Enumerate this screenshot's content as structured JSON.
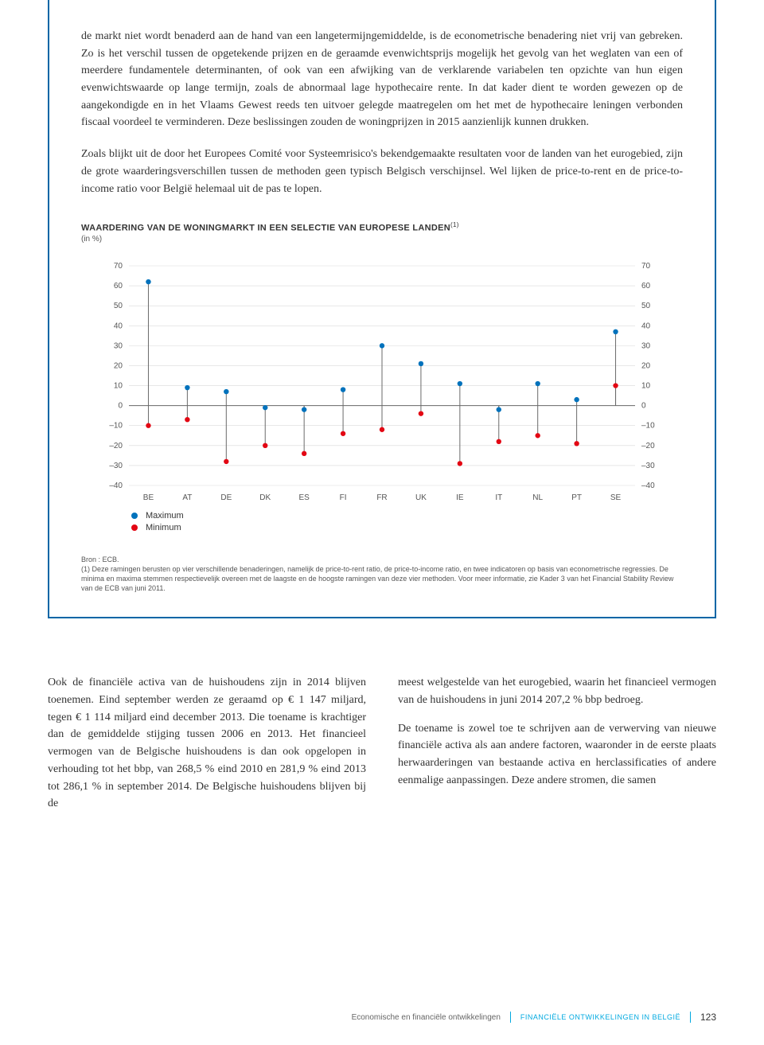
{
  "paragraphs": {
    "p1": "de markt niet wordt benaderd aan de hand van een langetermijngemiddelde, is de econometrische benadering niet vrij van gebreken. Zo is het verschil tussen de opgetekende prijzen en de geraamde evenwichtsprijs mogelijk het gevolg van het weglaten van een of meerdere fundamentele determinanten, of ook van een afwijking van de verklarende variabelen ten opzichte van hun eigen evenwichtswaarde op lange termijn, zoals de abnormaal lage hypothecaire rente. In dat kader dient te worden gewezen op de aangekondigde en in het Vlaams Gewest reeds ten uitvoer gelegde maatregelen om het met de hypothecaire leningen verbonden fiscaal voordeel te verminderen. Deze beslissingen zouden de woningprijzen in 2015 aanzienlijk kunnen drukken.",
    "p2": "Zoals blijkt uit de door het Europees Comité voor Systeemrisico's bekendgemaakte resultaten voor de landen van het eurogebied, zijn de grote waarderingsverschillen tussen de methoden geen typisch Belgisch verschijnsel. Wel lijken de price-to-rent en de price-to-income ratio voor België helemaal uit de pas te lopen."
  },
  "chart": {
    "title": "WAARDERING VAN DE WONINGMARKT IN EEN SELECTIE VAN EUROPESE LANDEN",
    "title_sup": "(1)",
    "subtitle": "(in %)",
    "y_ticks": [
      70,
      60,
      50,
      40,
      30,
      20,
      10,
      0,
      -10,
      -20,
      -30,
      -40
    ],
    "y_tick_labels": [
      "70",
      "60",
      "50",
      "40",
      "30",
      "20",
      "10",
      "0",
      "–10",
      "–20",
      "–30",
      "–40"
    ],
    "ylim": [
      -40,
      70
    ],
    "categories": [
      "BE",
      "AT",
      "DE",
      "DK",
      "ES",
      "FI",
      "FR",
      "UK",
      "IE",
      "IT",
      "NL",
      "PT",
      "SE"
    ],
    "max_values": [
      62,
      9,
      7,
      -1,
      -2,
      8,
      30,
      21,
      11,
      -2,
      11,
      3,
      37
    ],
    "min_values": [
      -10,
      -7,
      -28,
      -20,
      -24,
      -14,
      -12,
      -4,
      -29,
      -18,
      -15,
      -19,
      10
    ],
    "max_color": "#0072bc",
    "min_color": "#e30613",
    "line_color": "#6a6a6a",
    "grid_color": "#d9d9d9",
    "axis_color": "#666666",
    "background_color": "#ffffff",
    "tick_font_size": 10,
    "marker_radius": 3.2,
    "stem_width": 1
  },
  "legend": {
    "max": "Maximum",
    "min": "Minimum"
  },
  "source": {
    "line1": "Bron : ECB.",
    "line2": "(1) Deze ramingen berusten op vier verschillende benaderingen, namelijk de price-to-rent ratio, de price-to-income ratio, en twee indicatoren op basis van econometrische regressies. De minima en maxima stemmen respectievelijk overeen met de laagste en de hoogste ramingen van deze vier methoden. Voor meer informatie, zie Kader 3 van het Financial Stability Review van de ECB van juni 2011."
  },
  "columns": {
    "left": "Ook de financiële activa van de huishoudens zijn in 2014 blijven toenemen. Eind september werden ze geraamd op € 1 147 miljard, tegen € 1 114 miljard eind december 2013. Die toename is krachtiger dan de gemiddelde stijging tussen 2006 en 2013. Het financieel vermogen van de Belgische huishoudens is dan ook opgelopen in verhouding tot het bbp, van 268,5 % eind 2010 en 281,9 % eind 2013 tot 286,1 % in september 2014. De Belgische huishoudens blijven bij de",
    "right1": "meest welgestelde van het eurogebied, waarin het financieel vermogen van de huishoudens in juni 2014 207,2 % bbp bedroeg.",
    "right2": "De toename is zowel toe te schrijven aan de verwerving van nieuwe financiële activa als aan andere factoren, waaronder in de eerste plaats herwaarderingen van bestaande activa en herclassificaties of andere eenmalige aanpassingen. Deze andere stromen, die samen"
  },
  "footer": {
    "section_left": "Economische en financiële ontwikkelingen",
    "section_right": "FINANCIËLE ONTWIKKELINGEN IN BELGIË",
    "page": "123"
  }
}
